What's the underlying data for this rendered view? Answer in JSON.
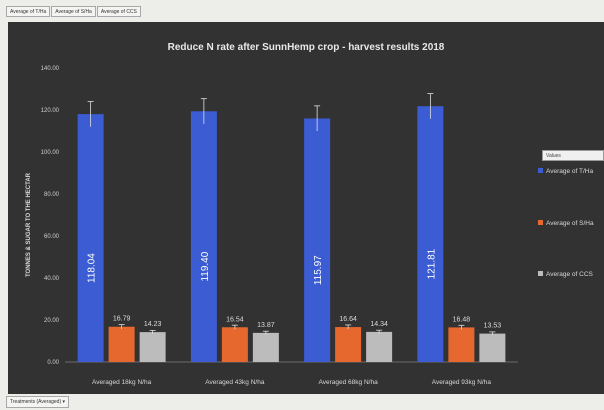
{
  "pivot_fields": [
    "Average of T/Ha",
    "Average of S/Ha",
    "Average of CCS"
  ],
  "legend_header": "Values",
  "filter_button": "Treatments (Averaged) ▾",
  "colors": {
    "series": [
      "#3c5cd4",
      "#e6682f",
      "#bcbcbc"
    ],
    "background": "#323232",
    "text": "#e8e8e8"
  },
  "chart_data": {
    "type": "bar",
    "title": "Reduce N rate after SunnHemp crop - harvest results 2018",
    "ylabel": "TONNES & SUGAR TO THE HECTAR",
    "xlabel": "",
    "ylim": [
      0,
      140
    ],
    "yticks": [
      "0.00",
      "20.00",
      "40.00",
      "60.00",
      "80.00",
      "100.00",
      "120.00",
      "140.00"
    ],
    "categories": [
      "Averaged 18kg N/ha",
      "Averaged 43kg N/ha",
      "Averaged 68kg N/ha",
      "Averaged 93kg N/ha"
    ],
    "series": [
      {
        "name": "Average of T/Ha",
        "values": [
          118.04,
          119.4,
          115.97,
          121.81
        ],
        "labels": [
          "118.04",
          "119.40",
          "115.97",
          "121.81"
        ],
        "errors": [
          6,
          6,
          6,
          6
        ]
      },
      {
        "name": "Average of S/Ha",
        "values": [
          16.79,
          16.54,
          16.64,
          16.48
        ],
        "labels": [
          "16.79",
          "16.54",
          "16.64",
          "16.48"
        ],
        "errors": [
          1,
          1,
          1,
          1
        ]
      },
      {
        "name": "Average of CCS",
        "values": [
          14.23,
          13.87,
          14.34,
          13.53
        ],
        "labels": [
          "14.23",
          "13.87",
          "14.34",
          "13.53"
        ],
        "errors": [
          0.8,
          0.8,
          0.8,
          0.8
        ]
      }
    ],
    "legend_position": "right",
    "grid": false
  }
}
